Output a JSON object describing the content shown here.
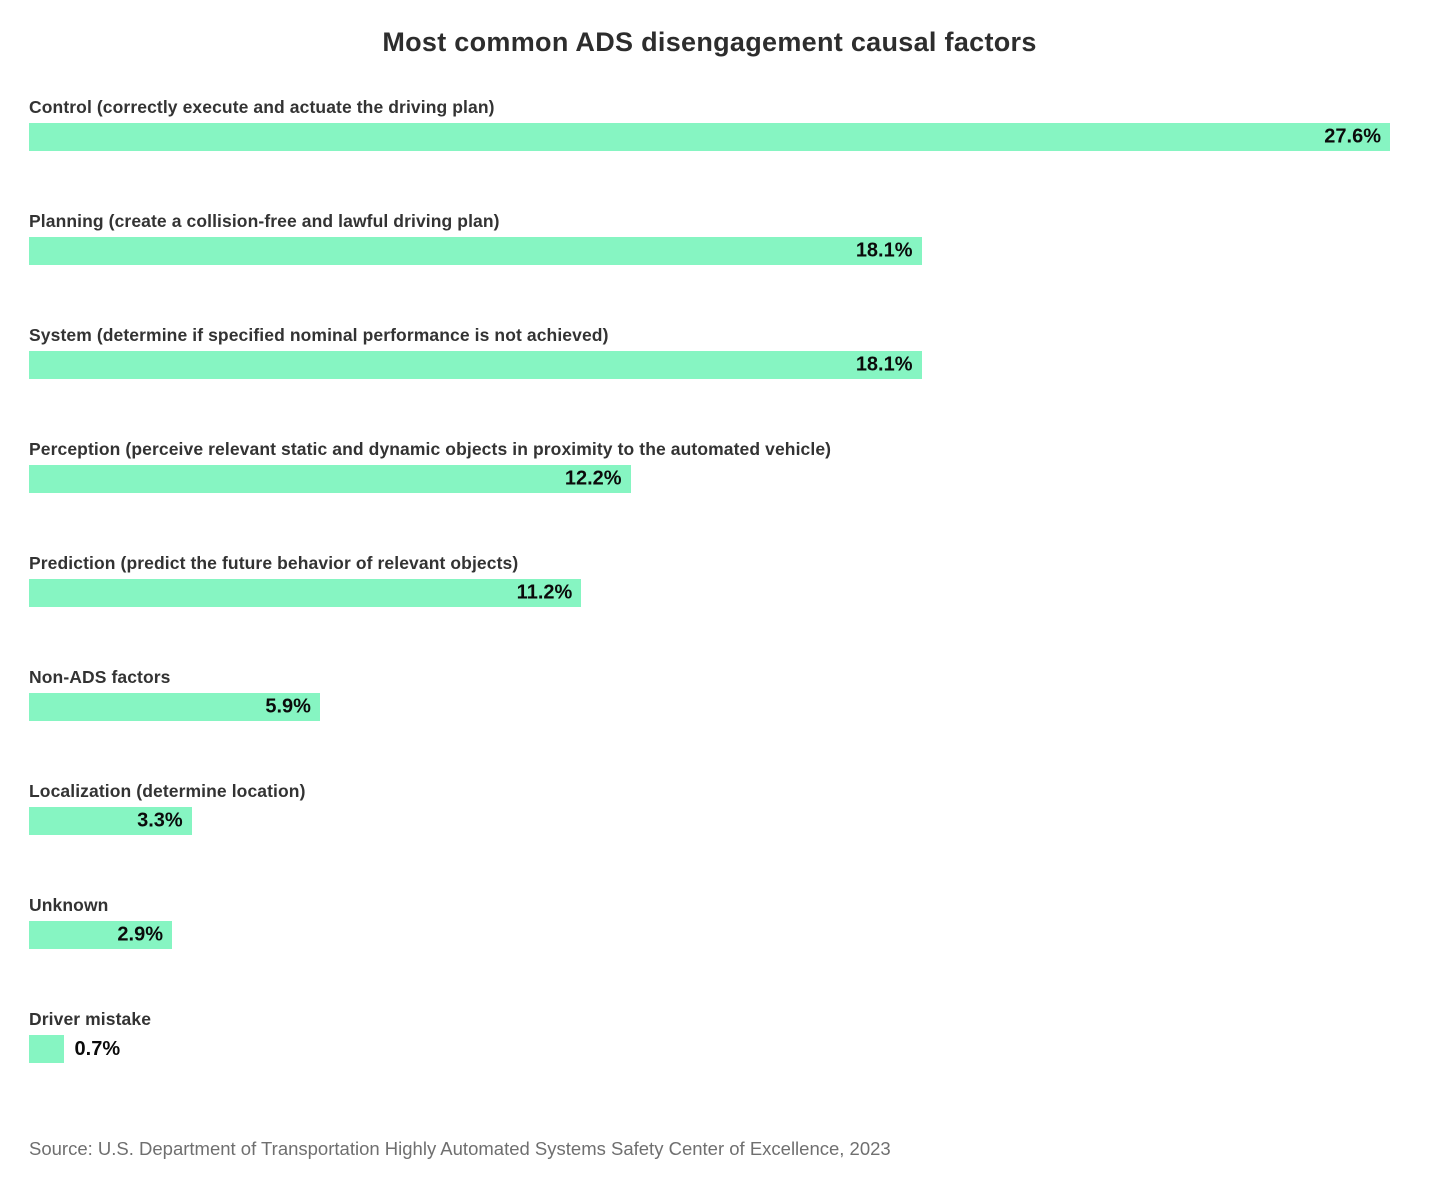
{
  "title": "Most common ADS disengagement causal factors",
  "source": "Source: U.S. Department of Transportation Highly Automated Systems Safety Center of Excellence, 2023",
  "colors": {
    "bar_fill": "#86F5C2",
    "title_text": "#2d2d2d",
    "category_text": "#333333",
    "value_text": "#0b0b0b",
    "source_text": "#6f6f6f",
    "background": "#ffffff"
  },
  "chart_data": {
    "type": "bar",
    "orientation": "horizontal",
    "title": "Most common ADS disengagement causal factors",
    "xlabel": "",
    "ylabel": "",
    "xlim": [
      0,
      27.6
    ],
    "grid": false,
    "legend": false,
    "categories": [
      "Control (correctly execute and actuate the driving plan)",
      "Planning (create a collision-free and lawful driving plan)",
      "System (determine if specified nominal performance is not achieved)",
      "Perception (perceive relevant static and dynamic objects in proximity to the automated vehicle)",
      "Prediction (predict the future behavior of relevant objects)",
      "Non-ADS factors",
      "Localization (determine location)",
      "Unknown",
      "Driver mistake"
    ],
    "values": [
      27.6,
      18.1,
      18.1,
      12.2,
      11.2,
      5.9,
      3.3,
      2.9,
      0.7
    ],
    "value_labels": [
      "27.6%",
      "18.1%",
      "18.1%",
      "12.2%",
      "11.2%",
      "5.9%",
      "3.3%",
      "2.9%",
      "0.7%"
    ]
  }
}
